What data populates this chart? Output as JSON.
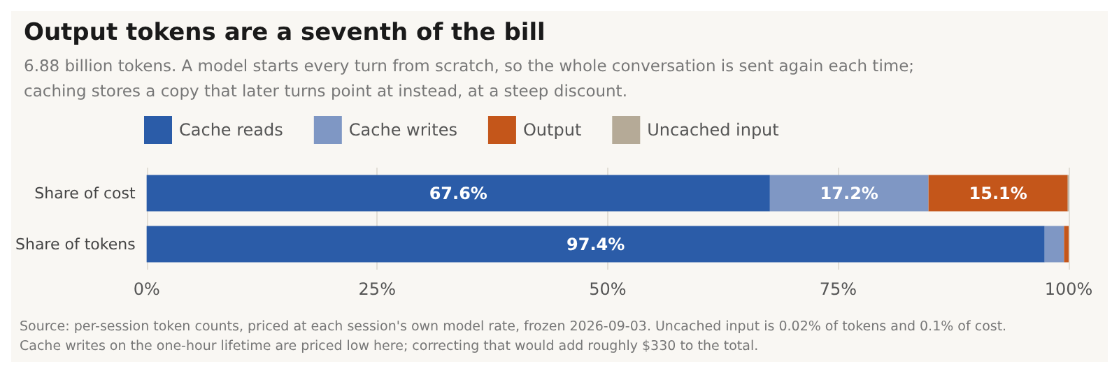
{
  "chart_data": {
    "type": "bar",
    "orientation": "horizontal",
    "stacked": true,
    "title": "Output tokens are a seventh of the bill",
    "subtitle": "6.88 billion tokens. A model starts every turn from scratch, so the whole conversation is sent again each time;\ncaching stores a copy that later turns point at instead, at a steep discount.",
    "categories": [
      "Share of cost",
      "Share of tokens"
    ],
    "series": [
      {
        "name": "Cache reads",
        "color": "#2b5ca8",
        "values": [
          67.6,
          97.4
        ],
        "value_labels": [
          "67.6%",
          "97.4%"
        ]
      },
      {
        "name": "Cache writes",
        "color": "#7f97c4",
        "values": [
          17.2,
          2.1
        ],
        "value_labels": [
          "17.2%",
          null
        ]
      },
      {
        "name": "Output",
        "color": "#c4561a",
        "values": [
          15.1,
          0.5
        ],
        "value_labels": [
          "15.1%",
          null
        ]
      },
      {
        "name": "Uncached input",
        "color": "#b5aa97",
        "values": [
          0.1,
          0.02
        ],
        "value_labels": [
          null,
          null
        ]
      }
    ],
    "xlim": [
      0,
      100
    ],
    "xticks": [
      {
        "value": 0,
        "label": "0%"
      },
      {
        "value": 25,
        "label": "25%"
      },
      {
        "value": 50,
        "label": "50%"
      },
      {
        "value": 75,
        "label": "75%"
      },
      {
        "value": 100,
        "label": "100%"
      }
    ],
    "grid": "x",
    "legend": "top",
    "annotations": [
      "Source: per-session token counts, priced at each session's own model rate, frozen 2026-09-03. Uncached input is 0.02% of tokens and 0.1% of cost.",
      "Cache writes on the one-hour lifetime are priced low here; correcting that would add roughly $330 to the total."
    ]
  }
}
